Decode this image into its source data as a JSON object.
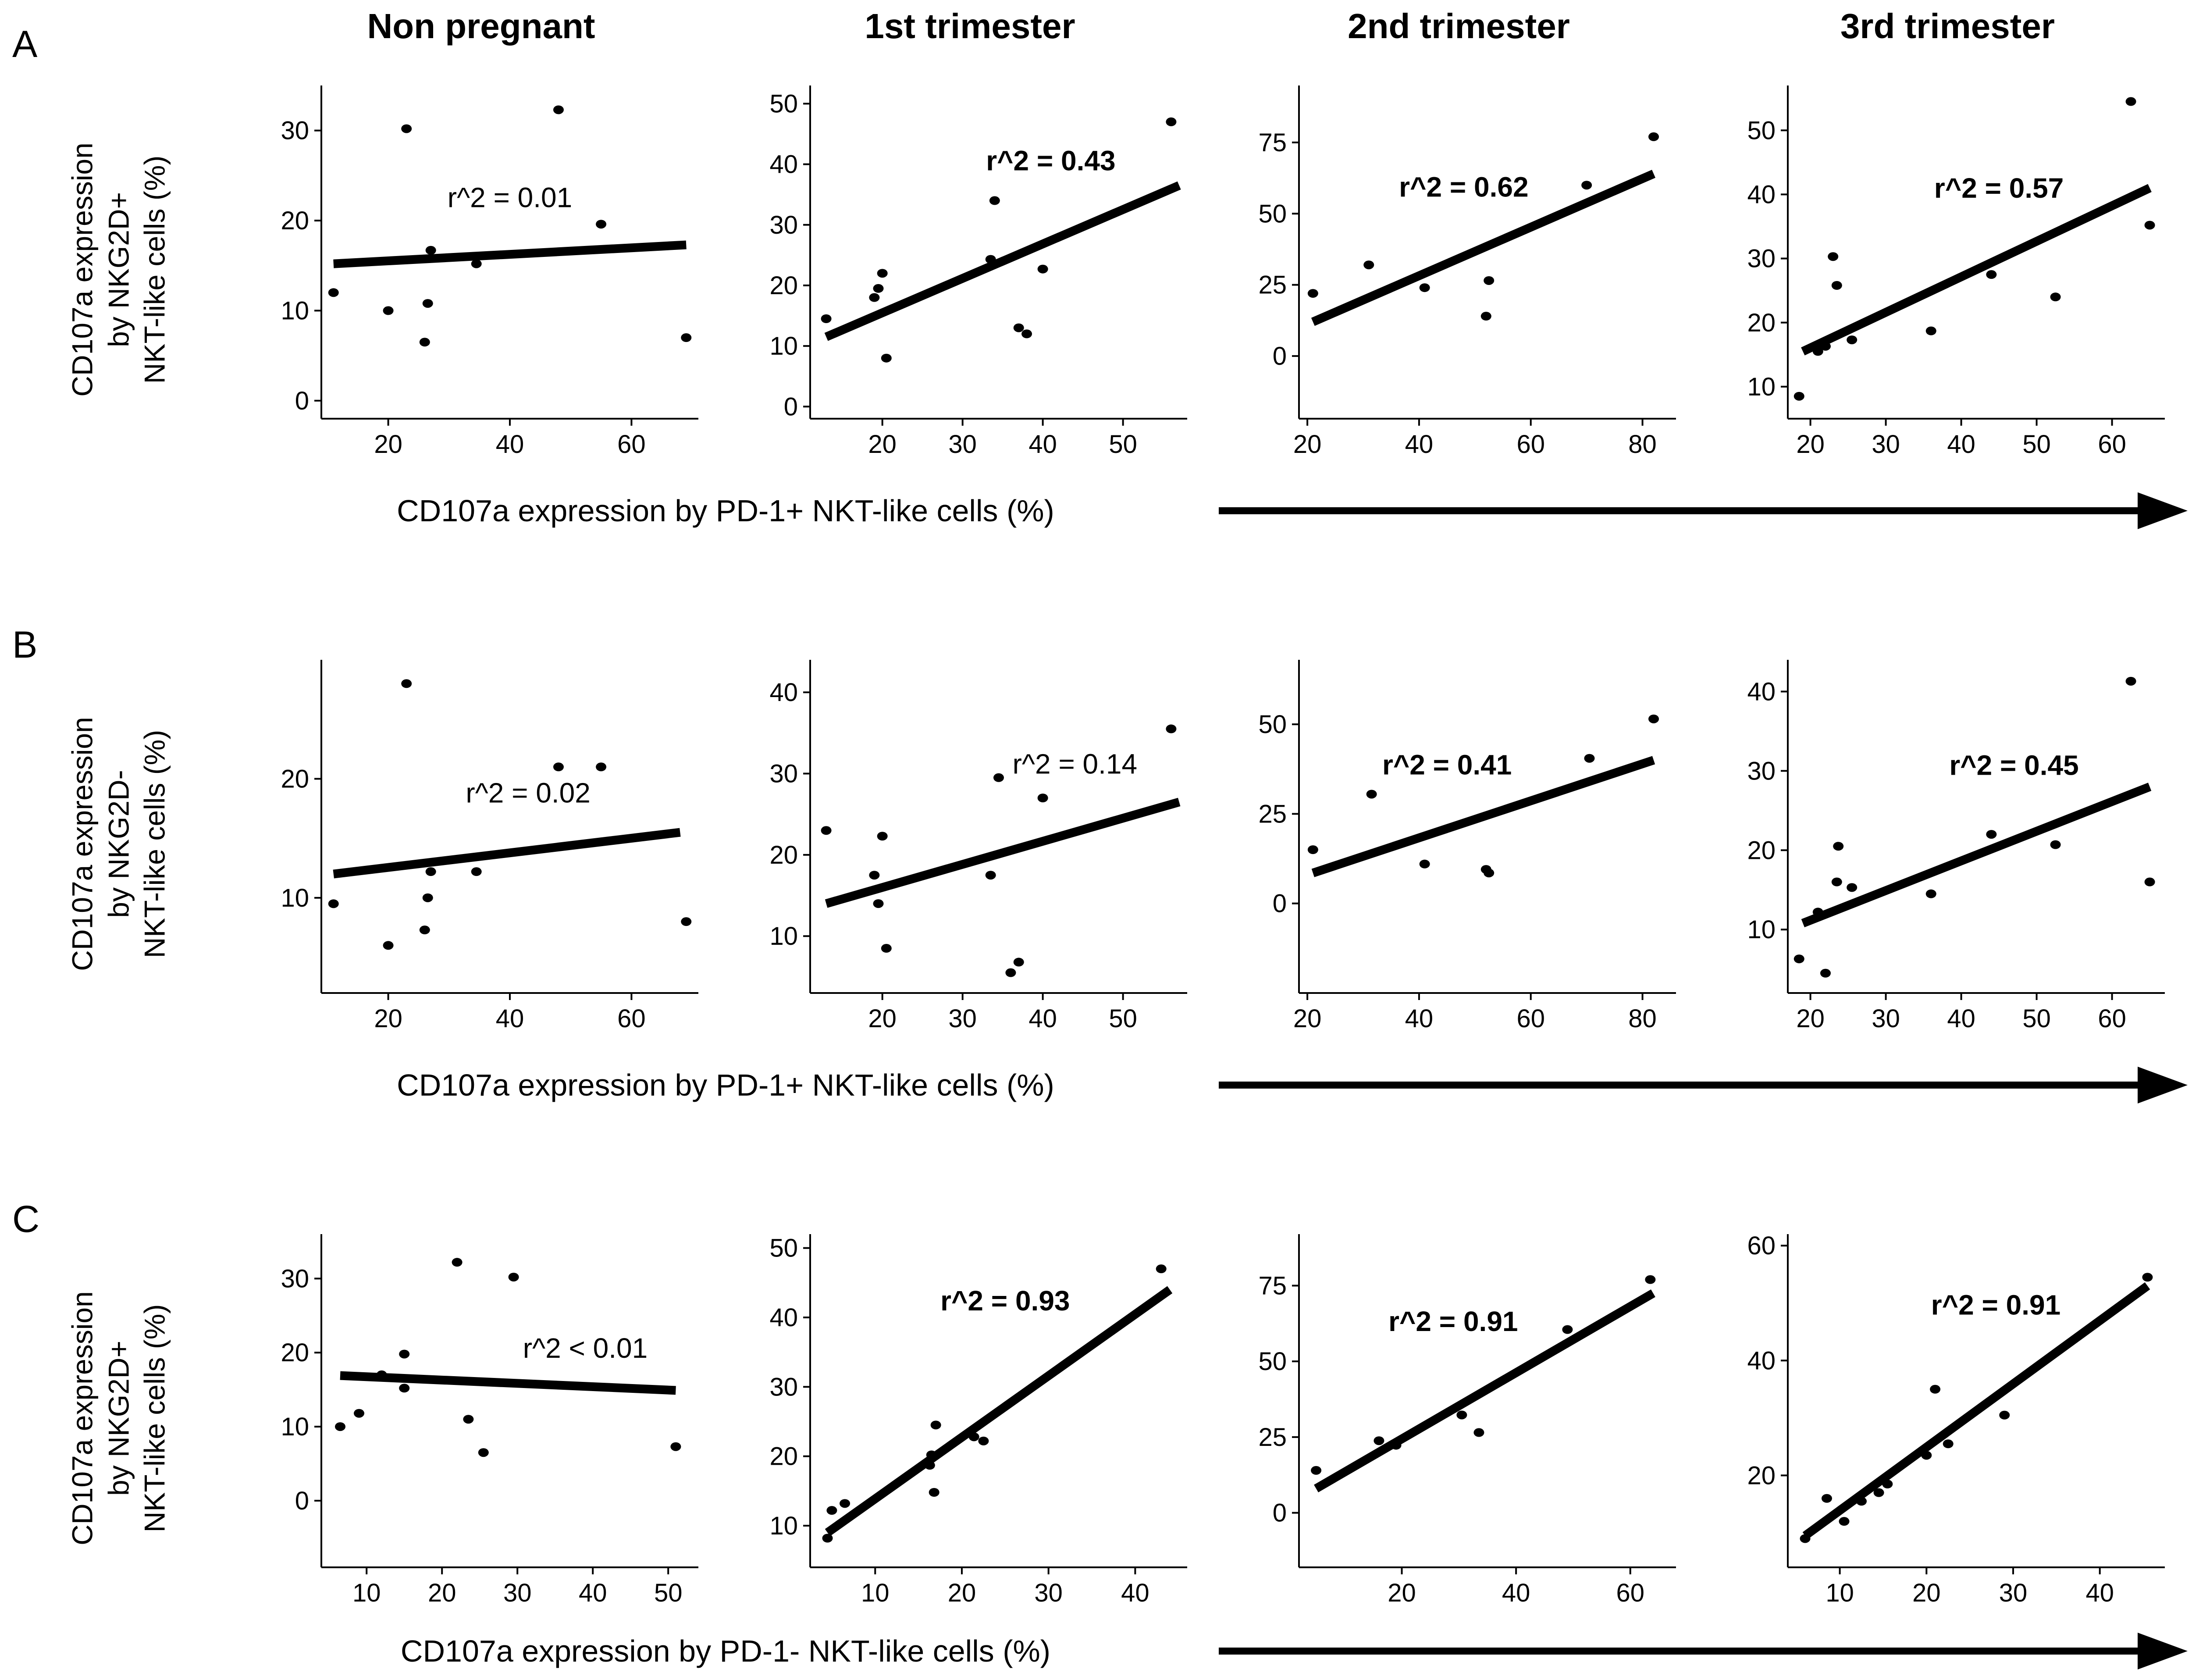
{
  "figure": {
    "row_letters": [
      "A",
      "B",
      "C"
    ],
    "column_titles": [
      "Non pregnant",
      "1st trimester",
      "2nd trimester",
      "3rd trimester"
    ],
    "x_axis_labels": {
      "row_a": "CD107a expression by PD-1+ NKT-like cells (%)",
      "row_b": "CD107a expression by PD-1+ NKT-like cells (%)",
      "row_c": "CD107a expression by PD-1- NKT-like cells (%)"
    },
    "y_axis_labels": {
      "row_a": [
        "CD107a  expression",
        "by NKG2D+",
        "NKT-like cells (%)"
      ],
      "row_b": [
        "CD107a  expression",
        "by NKG2D-",
        "NKT-like cells (%)"
      ],
      "row_c": [
        "CD107a  expression",
        "by NKG2D+",
        "NKT-like cells (%)"
      ]
    },
    "colors": {
      "foreground": "#000000",
      "background": "#ffffff"
    }
  },
  "chart_data": [
    {
      "id": "A1",
      "type": "scatter",
      "row": "A",
      "title": "Non pregnant",
      "r2_text": "r^2 = 0.01",
      "r2_bold": false,
      "r2_xy": [
        40,
        21.5
      ],
      "xlim": [
        9,
        71
      ],
      "ylim": [
        -2,
        35
      ],
      "xticks": [
        20,
        40,
        60
      ],
      "yticks": [
        0,
        10,
        20,
        30
      ],
      "points": [
        [
          11,
          12
        ],
        [
          20,
          10
        ],
        [
          23,
          30.2
        ],
        [
          26,
          6.5
        ],
        [
          26.5,
          10.8
        ],
        [
          27,
          16.7
        ],
        [
          34.5,
          15.2
        ],
        [
          48,
          32.3
        ],
        [
          55,
          19.6
        ],
        [
          69,
          7
        ]
      ],
      "line": [
        [
          11,
          15.2
        ],
        [
          69,
          17.3
        ]
      ]
    },
    {
      "id": "A2",
      "type": "scatter",
      "row": "A",
      "title": "1st trimester",
      "r2_text": "r^2 = 0.43",
      "r2_bold": true,
      "r2_xy": [
        41,
        39
      ],
      "xlim": [
        11,
        58
      ],
      "ylim": [
        -2,
        53
      ],
      "xticks": [
        20,
        30,
        40,
        50
      ],
      "yticks": [
        0,
        10,
        20,
        30,
        40,
        50
      ],
      "points": [
        [
          13,
          14.5
        ],
        [
          19,
          18
        ],
        [
          19.5,
          19.5
        ],
        [
          20,
          22
        ],
        [
          20.5,
          8
        ],
        [
          33.5,
          24.3
        ],
        [
          34,
          34
        ],
        [
          37,
          13
        ],
        [
          38,
          12
        ],
        [
          40,
          22.7
        ],
        [
          56,
          47
        ]
      ],
      "line": [
        [
          13,
          11.5
        ],
        [
          57,
          36.5
        ]
      ]
    },
    {
      "id": "A3",
      "type": "scatter",
      "row": "A",
      "title": "2nd trimester",
      "r2_text": "r^2 = 0.62",
      "r2_bold": true,
      "r2_xy": [
        48,
        56
      ],
      "xlim": [
        18.5,
        86
      ],
      "ylim": [
        -22,
        95
      ],
      "xticks": [
        20,
        40,
        60,
        80
      ],
      "yticks": [
        0,
        25,
        50,
        75
      ],
      "points": [
        [
          21,
          22
        ],
        [
          31,
          32
        ],
        [
          41,
          24
        ],
        [
          52,
          14
        ],
        [
          52.5,
          26.5
        ],
        [
          70,
          60
        ],
        [
          82,
          77
        ]
      ],
      "line": [
        [
          21,
          12
        ],
        [
          82,
          64
        ]
      ]
    },
    {
      "id": "A4",
      "type": "scatter",
      "row": "A",
      "title": "3rd trimester",
      "r2_text": "r^2 = 0.57",
      "r2_bold": true,
      "r2_xy": [
        45,
        39.5
      ],
      "xlim": [
        17,
        67
      ],
      "ylim": [
        5,
        57
      ],
      "xticks": [
        20,
        30,
        40,
        50,
        60
      ],
      "yticks": [
        10,
        20,
        30,
        40,
        50
      ],
      "points": [
        [
          18.5,
          8.5
        ],
        [
          21,
          15.5
        ],
        [
          22,
          16.3
        ],
        [
          23,
          30.3
        ],
        [
          23.5,
          25.8
        ],
        [
          25.5,
          17.3
        ],
        [
          36,
          18.7
        ],
        [
          44,
          27.5
        ],
        [
          52.5,
          24
        ],
        [
          62.5,
          54.5
        ],
        [
          65,
          35.2
        ]
      ],
      "line": [
        [
          19,
          15.5
        ],
        [
          65,
          41
        ]
      ]
    },
    {
      "id": "B1",
      "type": "scatter",
      "row": "B",
      "title": "Non pregnant",
      "r2_text": "r^2 = 0.02",
      "r2_bold": false,
      "r2_xy": [
        43,
        18
      ],
      "xlim": [
        9,
        71
      ],
      "ylim": [
        2,
        30
      ],
      "xticks": [
        20,
        40,
        60
      ],
      "yticks": [
        10,
        20
      ],
      "points": [
        [
          11,
          9.5
        ],
        [
          20,
          6
        ],
        [
          23,
          28
        ],
        [
          26,
          7.3
        ],
        [
          26.5,
          10
        ],
        [
          27,
          12.2
        ],
        [
          34.5,
          12.2
        ],
        [
          48,
          21
        ],
        [
          55,
          21
        ],
        [
          69,
          8
        ]
      ],
      "line": [
        [
          11,
          12
        ],
        [
          68,
          15.5
        ]
      ]
    },
    {
      "id": "B2",
      "type": "scatter",
      "row": "B",
      "title": "1st trimester",
      "r2_text": "r^2 = 0.14",
      "r2_bold": false,
      "r2_xy": [
        44,
        30
      ],
      "xlim": [
        11,
        58
      ],
      "ylim": [
        3,
        44
      ],
      "xticks": [
        20,
        30,
        40,
        50
      ],
      "yticks": [
        10,
        20,
        30,
        40
      ],
      "points": [
        [
          13,
          23
        ],
        [
          19,
          17.5
        ],
        [
          19.5,
          14
        ],
        [
          20,
          22.3
        ],
        [
          20.5,
          8.5
        ],
        [
          33.5,
          17.5
        ],
        [
          34.5,
          29.5
        ],
        [
          36,
          5.5
        ],
        [
          37,
          6.8
        ],
        [
          40,
          27
        ],
        [
          56,
          35.5
        ]
      ],
      "line": [
        [
          13,
          14
        ],
        [
          57,
          26.5
        ]
      ]
    },
    {
      "id": "B3",
      "type": "scatter",
      "row": "B",
      "title": "2nd trimester",
      "r2_text": "r^2 = 0.41",
      "r2_bold": true,
      "r2_xy": [
        45,
        36
      ],
      "xlim": [
        18.5,
        86
      ],
      "ylim": [
        -25,
        68
      ],
      "xticks": [
        20,
        40,
        60,
        80
      ],
      "yticks": [
        0,
        25,
        50
      ],
      "points": [
        [
          21,
          15
        ],
        [
          31.5,
          30.5
        ],
        [
          41,
          11
        ],
        [
          52,
          9.5
        ],
        [
          52.5,
          8.5
        ],
        [
          70.5,
          40.5
        ],
        [
          82,
          51.5
        ]
      ],
      "line": [
        [
          21,
          8.5
        ],
        [
          82,
          40
        ]
      ]
    },
    {
      "id": "B4",
      "type": "scatter",
      "row": "B",
      "title": "3rd trimester",
      "r2_text": "r^2 = 0.45",
      "r2_bold": true,
      "r2_xy": [
        47,
        29.5
      ],
      "xlim": [
        17,
        67
      ],
      "ylim": [
        2,
        44
      ],
      "xticks": [
        20,
        30,
        40,
        50,
        60
      ],
      "yticks": [
        10,
        20,
        30,
        40
      ],
      "points": [
        [
          18.5,
          6.3
        ],
        [
          21,
          12.2
        ],
        [
          22,
          4.5
        ],
        [
          23.5,
          16
        ],
        [
          23.7,
          20.5
        ],
        [
          25.5,
          15.3
        ],
        [
          36,
          14.5
        ],
        [
          44,
          22
        ],
        [
          52.5,
          20.7
        ],
        [
          62.5,
          41.3
        ],
        [
          65,
          16
        ]
      ],
      "line": [
        [
          19,
          10.8
        ],
        [
          65,
          28
        ]
      ]
    },
    {
      "id": "C1",
      "type": "scatter",
      "row": "C",
      "title": "Non pregnant",
      "r2_text": "r^2 < 0.01",
      "r2_bold": false,
      "r2_xy": [
        39,
        19.3
      ],
      "xlim": [
        4,
        54
      ],
      "ylim": [
        -9,
        36
      ],
      "xticks": [
        10,
        20,
        30,
        40,
        50
      ],
      "yticks": [
        0,
        10,
        20,
        30
      ],
      "points": [
        [
          6.5,
          10
        ],
        [
          9,
          11.8
        ],
        [
          12,
          17
        ],
        [
          15,
          15.2
        ],
        [
          15,
          19.8
        ],
        [
          22,
          32.2
        ],
        [
          23.5,
          11
        ],
        [
          25.5,
          6.5
        ],
        [
          29.5,
          30.2
        ],
        [
          51,
          7.3
        ]
      ],
      "line": [
        [
          6.5,
          16.9
        ],
        [
          51,
          14.9
        ]
      ]
    },
    {
      "id": "C2",
      "type": "scatter",
      "row": "C",
      "title": "1st trimester",
      "r2_text": "r^2 = 0.93",
      "r2_bold": true,
      "r2_xy": [
        25,
        41
      ],
      "xlim": [
        2.5,
        46
      ],
      "ylim": [
        4,
        52
      ],
      "xticks": [
        10,
        20,
        30,
        40
      ],
      "yticks": [
        10,
        20,
        30,
        40,
        50
      ],
      "points": [
        [
          4.5,
          8.2
        ],
        [
          5,
          12.2
        ],
        [
          6.5,
          13.2
        ],
        [
          16.3,
          18.7
        ],
        [
          16.5,
          20.2
        ],
        [
          17,
          24.5
        ],
        [
          16.8,
          14.8
        ],
        [
          21.4,
          22.8
        ],
        [
          22.5,
          22.2
        ],
        [
          43,
          47
        ]
      ],
      "line": [
        [
          4.5,
          9
        ],
        [
          44,
          44
        ]
      ]
    },
    {
      "id": "C3",
      "type": "scatter",
      "row": "C",
      "title": "2nd trimester",
      "r2_text": "r^2 = 0.91",
      "r2_bold": true,
      "r2_xy": [
        29,
        60
      ],
      "xlim": [
        2,
        68
      ],
      "ylim": [
        -18,
        92
      ],
      "xticks": [
        20,
        40,
        60
      ],
      "yticks": [
        0,
        25,
        50,
        75
      ],
      "points": [
        [
          5,
          14
        ],
        [
          16,
          23.8
        ],
        [
          19,
          22.3
        ],
        [
          30.5,
          32.3
        ],
        [
          33.5,
          26.5
        ],
        [
          49,
          60.5
        ],
        [
          63.5,
          77
        ]
      ],
      "line": [
        [
          5,
          8
        ],
        [
          64,
          72.5
        ]
      ]
    },
    {
      "id": "C4",
      "type": "scatter",
      "row": "C",
      "title": "3rd trimester",
      "r2_text": "r^2 = 0.91",
      "r2_bold": true,
      "r2_xy": [
        28,
        48
      ],
      "xlim": [
        4,
        47.5
      ],
      "ylim": [
        4,
        62
      ],
      "xticks": [
        10,
        20,
        30,
        40
      ],
      "yticks": [
        20,
        40,
        60
      ],
      "points": [
        [
          6,
          9
        ],
        [
          8.5,
          16
        ],
        [
          10.5,
          12
        ],
        [
          12.5,
          15.5
        ],
        [
          14.5,
          17
        ],
        [
          15.5,
          18.5
        ],
        [
          20,
          23.5
        ],
        [
          21,
          35
        ],
        [
          22.5,
          25.5
        ],
        [
          29,
          30.5
        ],
        [
          45.5,
          54.5
        ]
      ],
      "line": [
        [
          6,
          9.5
        ],
        [
          45.5,
          53
        ]
      ]
    }
  ]
}
